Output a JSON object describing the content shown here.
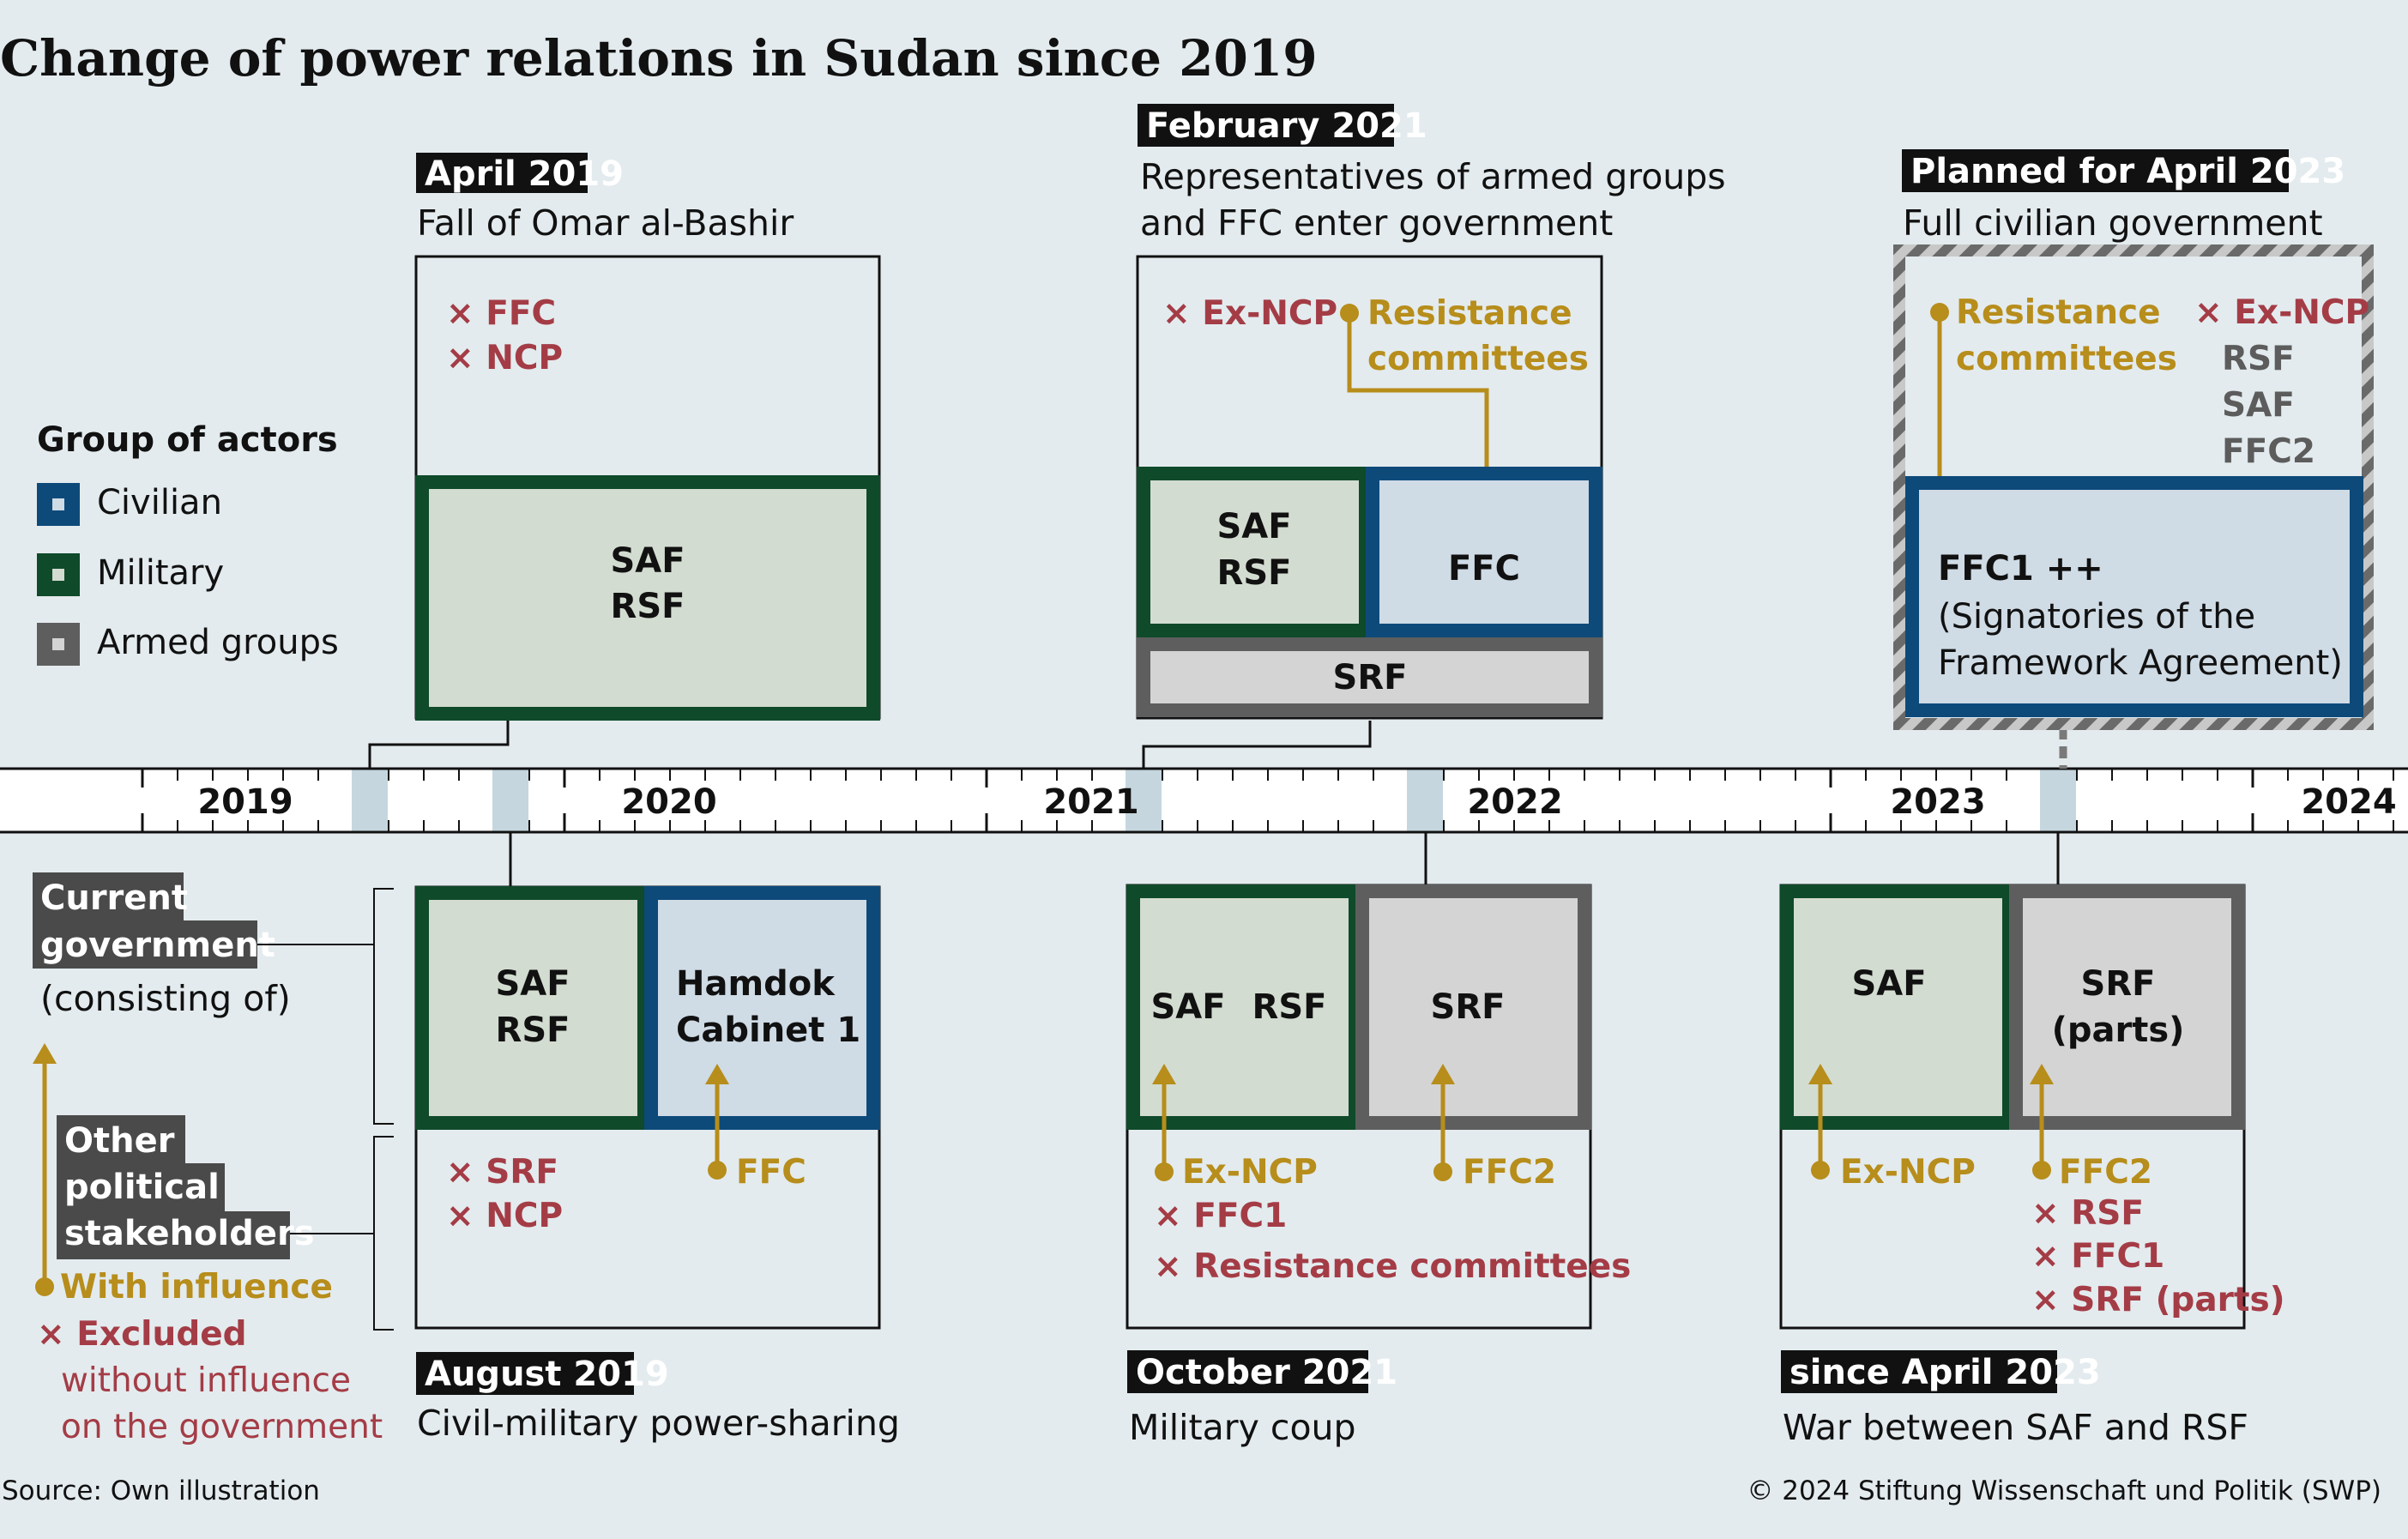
{
  "title": "Change of power relations in Sudan since 2019",
  "colors": {
    "civilian": "#0d4a7a",
    "military": "#0f4a2a",
    "armed_groups": "#5e5e5e",
    "with_influence": "#b78d1b",
    "excluded": "#a43c46"
  },
  "legend": {
    "heading": "Group of actors",
    "civilian": "Civilian",
    "military": "Military",
    "armed_groups": "Armed groups"
  },
  "timeline": {
    "years": [
      "2019",
      "2020",
      "2021",
      "2022",
      "2023",
      "2024"
    ]
  },
  "key": {
    "current_government_line1": "Current",
    "current_government_line2": "government",
    "consisting_of": "(consisting of)",
    "other_line1": "Other",
    "other_line2": "political",
    "other_line3": "stakeholders",
    "with_influence": "With influence",
    "excluded": "Excluded",
    "without_line1": "without influence",
    "without_line2": "on the government"
  },
  "phases": {
    "apr2019": {
      "date": "April 2019",
      "subtitle": "Fall of Omar al-Bashir",
      "excluded": [
        "FFC",
        "NCP"
      ],
      "military": [
        "SAF",
        "RSF"
      ]
    },
    "feb2021": {
      "date": "February 2021",
      "subtitle_line1": "Representatives of armed groups",
      "subtitle_line2": "and FFC enter government",
      "excluded": [
        "Ex-NCP"
      ],
      "influence_line1": "Resistance",
      "influence_line2": "committees",
      "military": [
        "SAF",
        "RSF"
      ],
      "civilian": "FFC",
      "armed": "SRF"
    },
    "apr2023_planned": {
      "date": "Planned for April 2023",
      "subtitle": "Full civilian government",
      "influence_line1": "Resistance",
      "influence_line2": "committees",
      "excluded": "Ex-NCP",
      "others": [
        "RSF",
        "SAF",
        "FFC2"
      ],
      "civilian_title": "FFC1 ++",
      "civilian_line1": "(Signatories of the",
      "civilian_line2": "Framework Agreement)"
    },
    "aug2019": {
      "date": "August 2019",
      "subtitle": "Civil-military power-sharing",
      "military": [
        "SAF",
        "RSF"
      ],
      "civilian": [
        "Hamdok",
        "Cabinet 1"
      ],
      "excluded": [
        "SRF",
        "NCP"
      ],
      "influence": "FFC"
    },
    "oct2021": {
      "date": "October 2021",
      "subtitle": "Military coup",
      "military": [
        "SAF",
        "RSF"
      ],
      "armed": "SRF",
      "influence": [
        "Ex-NCP",
        "FFC2"
      ],
      "excluded": [
        "FFC1",
        "Resistance committees"
      ]
    },
    "apr2023": {
      "date": "since April 2023",
      "subtitle": "War between SAF and RSF",
      "military": "SAF",
      "armed": [
        "SRF",
        "(parts)"
      ],
      "influence": [
        "Ex-NCP",
        "FFC2"
      ],
      "excluded": [
        "RSF",
        "FFC1",
        "SRF (parts)"
      ]
    }
  },
  "source": "Source: Own illustration",
  "copyright": "© 2024 Stiftung Wissenschaft und Politik (SWP)"
}
